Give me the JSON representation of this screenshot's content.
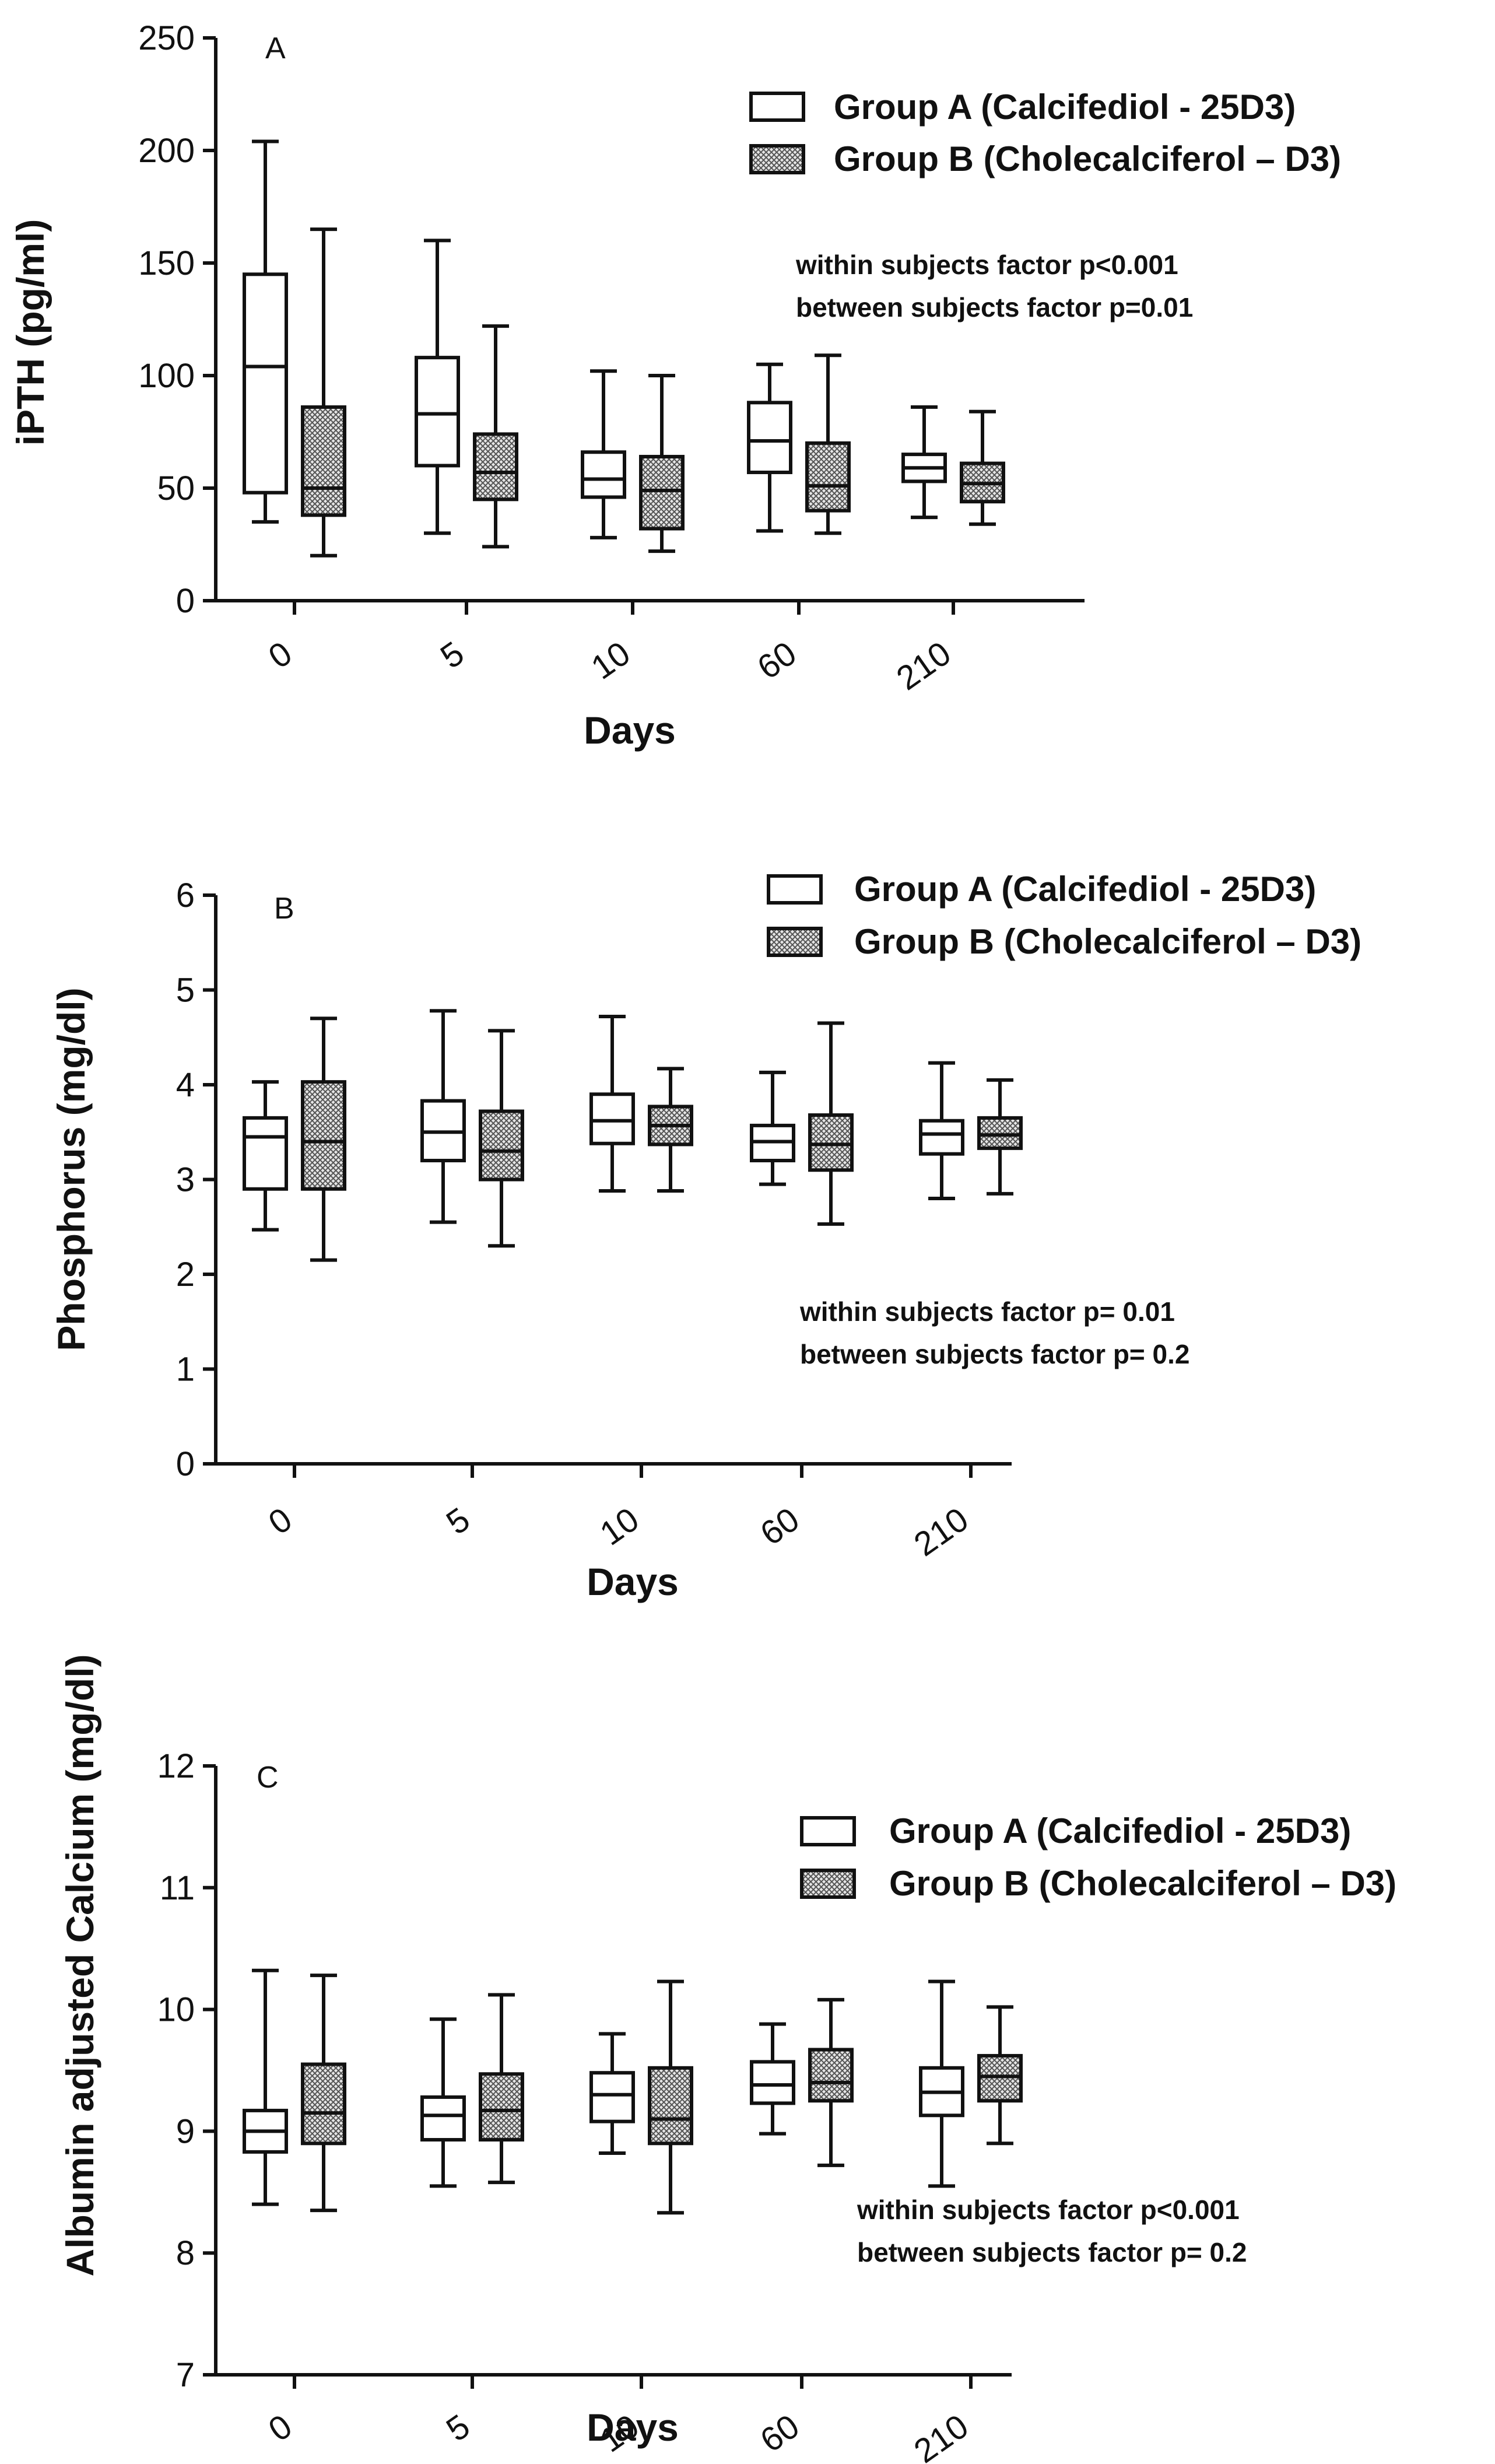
{
  "chart_data": [
    {
      "type": "box",
      "panel": "A",
      "ylabel": "iPTH (pg/ml)",
      "xlabel": "Days",
      "ylim": [
        0,
        250
      ],
      "yticks": [
        "0",
        "50",
        "100",
        "150",
        "200",
        "250"
      ],
      "categories": [
        "0",
        "5",
        "10",
        "60",
        "210"
      ],
      "legend": [
        "Group A (Calcifediol - 25D3)",
        "Group B (Cholecalciferol – D3)"
      ],
      "legend_position": "top-right",
      "annotations": [
        "within subjects factor p<0.001",
        "between subjects factor p=0.01"
      ],
      "series": [
        {
          "name": "Group A (Calcifediol - 25D3)",
          "fill": "white",
          "boxes": [
            [
              35,
              48,
              104,
              145,
              204
            ],
            [
              30,
              60,
              83,
              108,
              160
            ],
            [
              28,
              46,
              54,
              66,
              102
            ],
            [
              31,
              57,
              71,
              88,
              105
            ],
            [
              37,
              53,
              59,
              65,
              86
            ]
          ]
        },
        {
          "name": "Group B (Cholecalciferol – D3)",
          "fill": "hatched",
          "boxes": [
            [
              20,
              38,
              50,
              86,
              165
            ],
            [
              24,
              45,
              57,
              74,
              122
            ],
            [
              22,
              32,
              49,
              64,
              100
            ],
            [
              30,
              40,
              51,
              70,
              109
            ],
            [
              34,
              44,
              52,
              61,
              84
            ]
          ]
        }
      ]
    },
    {
      "type": "box",
      "panel": "B",
      "ylabel": "Phosphorus (mg/dl)",
      "xlabel": "Days",
      "ylim": [
        0,
        6
      ],
      "yticks": [
        "0",
        "1",
        "2",
        "3",
        "4",
        "5",
        "6"
      ],
      "categories": [
        "0",
        "5",
        "10",
        "60",
        "210"
      ],
      "legend": [
        "Group A (Calcifediol - 25D3)",
        "Group B (Cholecalciferol – D3)"
      ],
      "legend_position": "top-right",
      "annotations": [
        "within subjects factor p= 0.01",
        "between subjects factor p= 0.2"
      ],
      "series": [
        {
          "name": "Group A (Calcifediol - 25D3)",
          "fill": "white",
          "boxes": [
            [
              2.47,
              2.9,
              3.45,
              3.65,
              4.03
            ],
            [
              2.55,
              3.2,
              3.5,
              3.83,
              4.78
            ],
            [
              2.88,
              3.38,
              3.62,
              3.9,
              4.72
            ],
            [
              2.95,
              3.2,
              3.4,
              3.57,
              4.13
            ],
            [
              2.8,
              3.27,
              3.48,
              3.62,
              4.23
            ]
          ]
        },
        {
          "name": "Group B (Cholecalciferol – D3)",
          "fill": "hatched",
          "boxes": [
            [
              2.15,
              2.9,
              3.4,
              4.03,
              4.7
            ],
            [
              2.3,
              3.0,
              3.3,
              3.72,
              4.57
            ],
            [
              2.88,
              3.37,
              3.57,
              3.77,
              4.17
            ],
            [
              2.53,
              3.1,
              3.37,
              3.68,
              4.65
            ],
            [
              2.85,
              3.33,
              3.47,
              3.65,
              4.05
            ]
          ]
        }
      ]
    },
    {
      "type": "box",
      "panel": "C",
      "ylabel": "Albumin adjusted Calcium (mg/dl)",
      "xlabel": "Days",
      "ylim": [
        7,
        12
      ],
      "yticks": [
        "7",
        "8",
        "9",
        "10",
        "11",
        "12"
      ],
      "categories": [
        "0",
        "5",
        "10",
        "60",
        "210"
      ],
      "legend": [
        "Group A (Calcifediol - 25D3)",
        "Group B (Cholecalciferol – D3)"
      ],
      "legend_position": "top-right",
      "annotations": [
        "within subjects factor p<0.001",
        "between subjects factor p= 0.2"
      ],
      "series": [
        {
          "name": "Group A (Calcifediol - 25D3)",
          "fill": "white",
          "boxes": [
            [
              8.4,
              8.83,
              9.0,
              9.17,
              10.32
            ],
            [
              8.55,
              8.93,
              9.13,
              9.28,
              9.92
            ],
            [
              8.82,
              9.08,
              9.3,
              9.48,
              9.8
            ],
            [
              8.98,
              9.23,
              9.38,
              9.57,
              9.88
            ],
            [
              8.55,
              9.13,
              9.32,
              9.52,
              10.23
            ]
          ]
        },
        {
          "name": "Group B (Cholecalciferol – D3)",
          "fill": "hatched",
          "boxes": [
            [
              8.35,
              8.9,
              9.15,
              9.55,
              10.28
            ],
            [
              8.58,
              8.93,
              9.17,
              9.47,
              10.12
            ],
            [
              8.33,
              8.9,
              9.1,
              9.52,
              10.23
            ],
            [
              8.72,
              9.25,
              9.4,
              9.67,
              10.08
            ],
            [
              8.9,
              9.25,
              9.45,
              9.62,
              10.02
            ]
          ]
        }
      ]
    }
  ]
}
